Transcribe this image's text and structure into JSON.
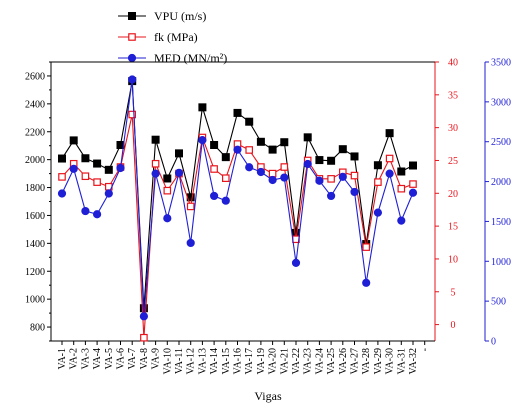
{
  "chart_data": {
    "type": "line",
    "xlabel": "Vigas",
    "categories": [
      "VA-1",
      "VA-2",
      "VA-3",
      "VA-4",
      "VA-5",
      "VA-6",
      "VA-7",
      "VA-8",
      "VA-9",
      "VA-10",
      "VA-11",
      "VA-12",
      "VA-13",
      "VA-14",
      "VA-15",
      "VA-16",
      "VA-17",
      "VA-19",
      "VA-20",
      "VA-21",
      "VA-22",
      "VA-23",
      "VA-24",
      "VA-25",
      "VA-26",
      "VA-27",
      "VA-28",
      "VA-29",
      "VA-30",
      "VA-31",
      "VA-32"
    ],
    "extra_tick_label": "-",
    "legend_position": "top-center",
    "axes": {
      "left": {
        "ylim": [
          700,
          2700
        ],
        "ticks": [
          800,
          1000,
          1200,
          1400,
          1600,
          1800,
          2000,
          2200,
          2400,
          2600
        ],
        "color": "#000000"
      },
      "right1": {
        "ylim": [
          -2.5,
          40
        ],
        "ticks": [
          0,
          5,
          10,
          15,
          20,
          25,
          30,
          35,
          40
        ],
        "color": "#e8141c"
      },
      "right2": {
        "ylim": [
          0,
          3500
        ],
        "ticks": [
          0,
          500,
          1000,
          1500,
          2000,
          2500,
          3000,
          3500
        ],
        "color": "#1f1fd6"
      }
    },
    "series": [
      {
        "name": "VPU (m/s)",
        "axis": "left",
        "color": "#000000",
        "marker": "square-filled",
        "values": [
          2008,
          2138,
          2010,
          1972,
          1927,
          2105,
          2563,
          935,
          2143,
          1865,
          2045,
          1730,
          2375,
          2105,
          2018,
          2335,
          2272,
          2128,
          2072,
          2125,
          1475,
          2160,
          1997,
          1992,
          2075,
          2023,
          1395,
          1960,
          2190,
          1915,
          1958
        ]
      },
      {
        "name": "fk (MPa)",
        "axis": "right1",
        "color": "#e8141c",
        "marker": "square-open",
        "values": [
          22.5,
          24.5,
          22.6,
          21.7,
          21.0,
          24.0,
          32.0,
          -2.0,
          24.5,
          20.4,
          23.0,
          18.0,
          28.5,
          23.7,
          22.3,
          27.5,
          26.6,
          24.0,
          23.0,
          24.0,
          13.0,
          25.0,
          22.2,
          22.2,
          23.2,
          22.7,
          11.8,
          21.7,
          25.3,
          20.7,
          21.4
        ]
      },
      {
        "name": "MED (MN/m²)",
        "axis": "right2",
        "color": "#1f1fd6",
        "marker": "circle-filled",
        "values": [
          1850,
          2160,
          1630,
          1590,
          1850,
          2170,
          3280,
          310,
          2100,
          1540,
          2110,
          1230,
          2520,
          1820,
          1760,
          2400,
          2180,
          2120,
          2020,
          2050,
          980,
          2220,
          2010,
          1820,
          2060,
          1870,
          730,
          1610,
          2100,
          1510,
          1860
        ]
      }
    ]
  }
}
